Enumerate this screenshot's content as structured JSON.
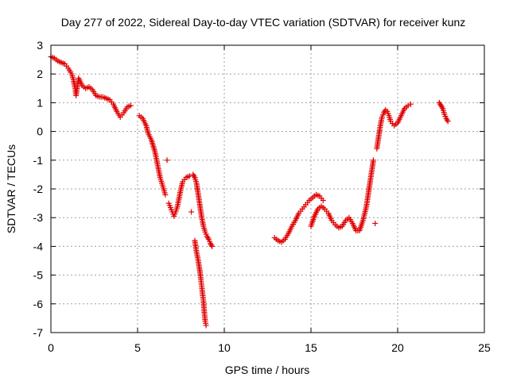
{
  "chart_data": {
    "type": "scatter",
    "title": "Day 277 of 2022, Sidereal Day-to-day VTEC variation (SDTVAR) for receiver kunz",
    "xlabel": "GPS time / hours",
    "ylabel": "SDTVAR / TECUs",
    "xlim": [
      0,
      25
    ],
    "ylim": [
      -7,
      3
    ],
    "xticks": [
      0,
      5,
      10,
      15,
      20,
      25
    ],
    "yticks": [
      -7,
      -6,
      -5,
      -4,
      -3,
      -2,
      -1,
      0,
      1,
      2,
      3
    ],
    "grid": true,
    "legend": "none",
    "marker": "plus",
    "color": "#e00000",
    "series": [
      {
        "points": [
          [
            0.0,
            2.6
          ],
          [
            0.2,
            2.55
          ],
          [
            0.4,
            2.45
          ],
          [
            0.6,
            2.4
          ],
          [
            0.8,
            2.35
          ],
          [
            1.0,
            2.2
          ],
          [
            1.2,
            2.0
          ],
          [
            1.3,
            1.8
          ],
          [
            1.4,
            1.5
          ],
          [
            1.45,
            1.25
          ],
          [
            1.6,
            1.85
          ],
          [
            1.8,
            1.6
          ],
          [
            2.0,
            1.5
          ],
          [
            2.2,
            1.55
          ],
          [
            2.4,
            1.45
          ],
          [
            2.6,
            1.25
          ],
          [
            2.8,
            1.2
          ],
          [
            3.0,
            1.2
          ],
          [
            3.2,
            1.15
          ],
          [
            3.4,
            1.1
          ],
          [
            3.6,
            0.95
          ],
          [
            3.8,
            0.7
          ],
          [
            4.0,
            0.5
          ],
          [
            4.2,
            0.65
          ],
          [
            4.4,
            0.85
          ],
          [
            4.6,
            0.9
          ],
          [
            5.1,
            0.55
          ],
          [
            5.3,
            0.45
          ],
          [
            5.5,
            0.2
          ],
          [
            5.6,
            -0.05
          ],
          [
            5.8,
            -0.3
          ],
          [
            6.0,
            -0.7
          ],
          [
            6.1,
            -1.0
          ],
          [
            6.2,
            -1.3
          ],
          [
            6.3,
            -1.6
          ],
          [
            6.4,
            -1.8
          ],
          [
            6.5,
            -2.0
          ],
          [
            6.6,
            -2.2
          ],
          [
            6.7,
            -1.0
          ],
          [
            6.8,
            -2.5
          ],
          [
            6.9,
            -2.65
          ],
          [
            7.0,
            -2.8
          ],
          [
            7.1,
            -2.95
          ],
          [
            7.2,
            -2.8
          ],
          [
            7.3,
            -2.6
          ],
          [
            7.4,
            -2.3
          ],
          [
            7.5,
            -2.0
          ],
          [
            7.6,
            -1.75
          ],
          [
            7.8,
            -1.6
          ],
          [
            8.0,
            -1.55
          ],
          [
            8.1,
            -2.8
          ],
          [
            8.2,
            -1.5
          ],
          [
            8.3,
            -1.6
          ],
          [
            8.4,
            -1.8
          ],
          [
            8.5,
            -2.2
          ],
          [
            8.6,
            -2.6
          ],
          [
            8.7,
            -3.0
          ],
          [
            8.8,
            -3.3
          ],
          [
            8.9,
            -3.5
          ],
          [
            9.0,
            -3.65
          ],
          [
            9.1,
            -3.75
          ],
          [
            9.2,
            -3.9
          ],
          [
            9.3,
            -4.0
          ],
          [
            8.3,
            -3.8
          ],
          [
            8.4,
            -4.2
          ],
          [
            8.5,
            -4.5
          ],
          [
            8.6,
            -4.9
          ],
          [
            8.7,
            -5.4
          ],
          [
            8.8,
            -5.9
          ],
          [
            8.85,
            -6.3
          ],
          [
            8.9,
            -6.6
          ],
          [
            8.95,
            -6.75
          ],
          [
            12.9,
            -3.7
          ],
          [
            13.1,
            -3.8
          ],
          [
            13.3,
            -3.85
          ],
          [
            13.5,
            -3.75
          ],
          [
            13.7,
            -3.55
          ],
          [
            13.9,
            -3.3
          ],
          [
            14.1,
            -3.1
          ],
          [
            14.3,
            -2.85
          ],
          [
            14.5,
            -2.7
          ],
          [
            14.7,
            -2.55
          ],
          [
            14.9,
            -2.4
          ],
          [
            15.1,
            -2.3
          ],
          [
            15.3,
            -2.2
          ],
          [
            15.5,
            -2.25
          ],
          [
            15.7,
            -2.4
          ],
          [
            15.0,
            -3.3
          ],
          [
            15.2,
            -2.95
          ],
          [
            15.4,
            -2.7
          ],
          [
            15.6,
            -2.6
          ],
          [
            15.8,
            -2.7
          ],
          [
            16.0,
            -2.85
          ],
          [
            16.2,
            -3.1
          ],
          [
            16.4,
            -3.25
          ],
          [
            16.6,
            -3.35
          ],
          [
            16.8,
            -3.3
          ],
          [
            17.0,
            -3.1
          ],
          [
            17.2,
            -3.0
          ],
          [
            17.4,
            -3.2
          ],
          [
            17.6,
            -3.45
          ],
          [
            17.8,
            -3.45
          ],
          [
            18.0,
            -3.1
          ],
          [
            18.2,
            -2.6
          ],
          [
            18.3,
            -2.2
          ],
          [
            18.4,
            -1.8
          ],
          [
            18.5,
            -1.4
          ],
          [
            18.6,
            -1.0
          ],
          [
            18.7,
            -3.2
          ],
          [
            18.8,
            -0.6
          ],
          [
            18.9,
            -0.2
          ],
          [
            19.0,
            0.2
          ],
          [
            19.1,
            0.5
          ],
          [
            19.2,
            0.65
          ],
          [
            19.3,
            0.75
          ],
          [
            19.4,
            0.7
          ],
          [
            19.5,
            0.55
          ],
          [
            19.6,
            0.35
          ],
          [
            19.8,
            0.2
          ],
          [
            20.0,
            0.3
          ],
          [
            20.2,
            0.55
          ],
          [
            20.4,
            0.8
          ],
          [
            20.6,
            0.9
          ],
          [
            20.75,
            0.95
          ],
          [
            22.4,
            1.0
          ],
          [
            22.5,
            0.9
          ],
          [
            22.6,
            0.8
          ],
          [
            22.7,
            0.6
          ],
          [
            22.8,
            0.45
          ],
          [
            22.9,
            0.35
          ]
        ]
      }
    ]
  }
}
